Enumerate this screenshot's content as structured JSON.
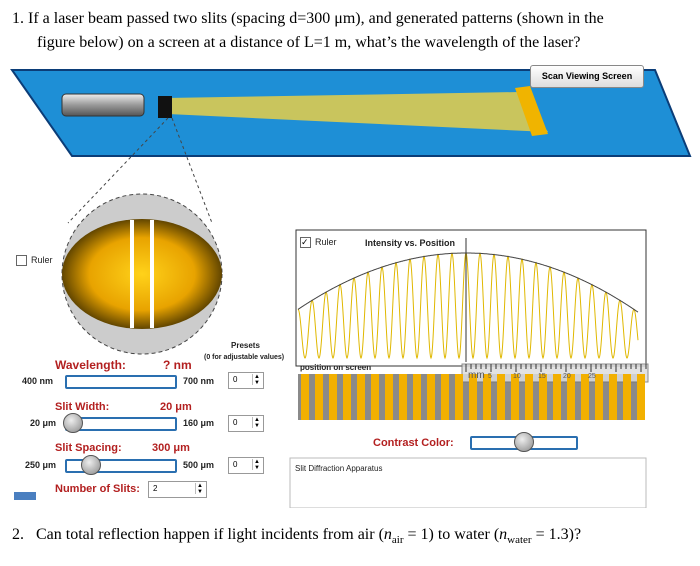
{
  "question1": {
    "line1": "1.  If a laser beam passed two slits (spacing d=300 μm), and generated patterns (shown in the",
    "line2": "figure below) on a screen at a distance of L=1 m, what’s the wavelength of the laser?"
  },
  "simulation": {
    "scan_button": "Scan Viewing Screen",
    "ruler_left": "Ruler",
    "ruler_right": "Ruler",
    "graph_title": "Intensity vs. Position",
    "position_label": "position on screen",
    "ruler_labels": [
      "mm",
      "5",
      "10",
      "15",
      "20",
      "25"
    ],
    "presets": "Presets",
    "presets_note": "(0 for adjustable values)",
    "wavelength": {
      "label": "Wavelength:",
      "value": "? nm",
      "min": "400 nm",
      "max": "700 nm",
      "preset": "0"
    },
    "slit_width": {
      "label": "Slit Width:",
      "value": "20 μm",
      "min": "20 μm",
      "max": "160 μm",
      "preset": "0"
    },
    "slit_spacing": {
      "label": "Slit Spacing:",
      "value": "300 μm",
      "min": "250 μm",
      "max": "500 μm",
      "preset": "0"
    },
    "number_of_slits": {
      "label": "Number of Slits:",
      "value": "2"
    },
    "contrast_color": "Contrast Color:",
    "apparatus_label": "Slit Diffraction Apparatus"
  },
  "question2": {
    "number": "2.",
    "segments": [
      "Can total reflection happen if light incidents from air (",
      "n",
      "air",
      " = 1) to water (",
      "n",
      "water",
      " = 1.3)?"
    ]
  }
}
